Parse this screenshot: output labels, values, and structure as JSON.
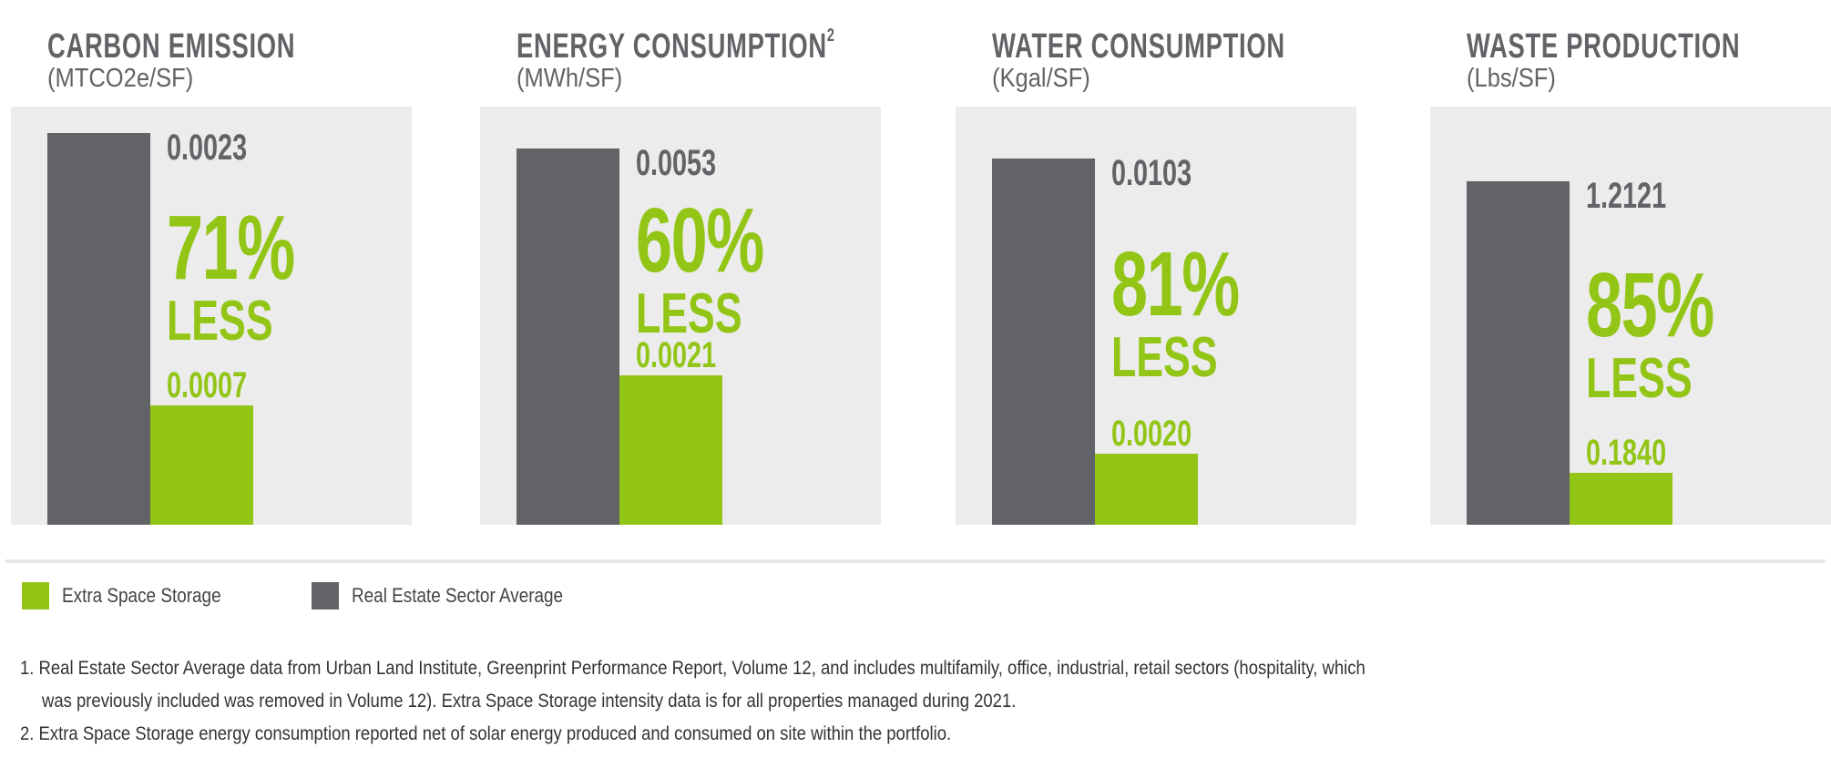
{
  "chart_data": [
    {
      "type": "bar",
      "title": "CARBON EMISSION",
      "superscript": "",
      "unit": "(MTCO2e/SF)",
      "categories": [
        "Real Estate Sector Average",
        "Extra Space Storage"
      ],
      "values": [
        0.0023,
        0.0007
      ],
      "value_labels": [
        "0.0023",
        "0.0007"
      ],
      "reduction": "71%",
      "reduction_label": "LESS"
    },
    {
      "type": "bar",
      "title": "ENERGY CONSUMPTION",
      "superscript": "2",
      "unit": "(MWh/SF)",
      "categories": [
        "Real Estate Sector Average",
        "Extra Space Storage"
      ],
      "values": [
        0.0053,
        0.0021
      ],
      "value_labels": [
        "0.0053",
        "0.0021"
      ],
      "reduction": "60%",
      "reduction_label": "LESS"
    },
    {
      "type": "bar",
      "title": "WATER CONSUMPTION",
      "superscript": "",
      "unit": "(Kgal/SF)",
      "categories": [
        "Real Estate Sector Average",
        "Extra Space Storage"
      ],
      "values": [
        0.0103,
        0.002
      ],
      "value_labels": [
        "0.0103",
        "0.0020"
      ],
      "reduction": "81%",
      "reduction_label": "LESS"
    },
    {
      "type": "bar",
      "title": "WASTE PRODUCTION",
      "superscript": "",
      "unit": "(Lbs/SF)",
      "categories": [
        "Real Estate Sector Average",
        "Extra Space Storage"
      ],
      "values": [
        1.2121,
        0.184
      ],
      "value_labels": [
        "1.2121",
        "0.1840"
      ],
      "reduction": "85%",
      "reduction_label": "LESS"
    }
  ],
  "legend": [
    {
      "label": "Extra Space Storage",
      "color": "#92c516"
    },
    {
      "label": "Real Estate Sector Average",
      "color": "#626367"
    }
  ],
  "colors": {
    "gray": "#626367",
    "green": "#92c516",
    "panel": "#ececec"
  },
  "footnotes": [
    "1. Real Estate Sector Average data from Urban Land Institute, Greenprint Performance Report, Volume 12, and includes multifamily, office, industrial, retail sectors (hospitality, which",
    "was previously included was removed in Volume 12). Extra Space Storage intensity data is for all properties managed during 2021.",
    "2. Extra Space Storage energy consumption reported net of solar energy produced and consumed on site within the portfolio."
  ]
}
